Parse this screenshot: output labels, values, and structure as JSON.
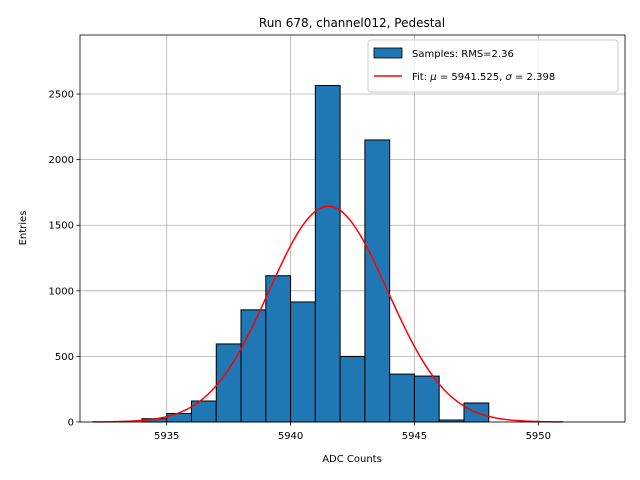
{
  "chart_data": {
    "type": "bar",
    "title": "Run 678, channel012, Pedestal",
    "xlabel": "ADC Counts",
    "ylabel": "Entries",
    "xlim": [
      5931.5,
      5953.5
    ],
    "ylim": [
      0,
      2950
    ],
    "xticks": [
      5935,
      5940,
      5945,
      5950
    ],
    "yticks": [
      0,
      500,
      1000,
      1500,
      2000,
      2500
    ],
    "grid": true,
    "legend_position": "top-right",
    "histogram": {
      "name": "Samples: RMS=2.36",
      "color": "#1f77b4",
      "edge_color": "#000000",
      "bins": [
        {
          "x0": 5934.0,
          "x1": 5935.0,
          "value": 25
        },
        {
          "x0": 5935.0,
          "x1": 5936.0,
          "value": 65
        },
        {
          "x0": 5936.0,
          "x1": 5937.0,
          "value": 160
        },
        {
          "x0": 5937.0,
          "x1": 5938.0,
          "value": 595
        },
        {
          "x0": 5938.0,
          "x1": 5939.0,
          "value": 855
        },
        {
          "x0": 5939.0,
          "x1": 5940.0,
          "value": 1115
        },
        {
          "x0": 5940.0,
          "x1": 5941.0,
          "value": 915
        },
        {
          "x0": 5941.0,
          "x1": 5942.0,
          "value": 2565
        },
        {
          "x0": 5942.0,
          "x1": 5943.0,
          "value": 500
        },
        {
          "x0": 5943.0,
          "x1": 5944.0,
          "value": 2150
        },
        {
          "x0": 5944.0,
          "x1": 5945.0,
          "value": 365
        },
        {
          "x0": 5945.0,
          "x1": 5946.0,
          "value": 350
        },
        {
          "x0": 5946.0,
          "x1": 5947.0,
          "value": 15
        },
        {
          "x0": 5947.0,
          "x1": 5948.0,
          "value": 145
        }
      ]
    },
    "fit": {
      "name_prefix": "Fit: ",
      "mu_symbol": "μ",
      "mu_text": " = 5941.525, ",
      "sigma_symbol": "σ",
      "sigma_text": " = 2.398",
      "color": "#ff0000",
      "mu": 5941.525,
      "sigma": 2.398,
      "amplitude": 1645,
      "x_range": [
        5932.0,
        5951.0
      ]
    }
  }
}
